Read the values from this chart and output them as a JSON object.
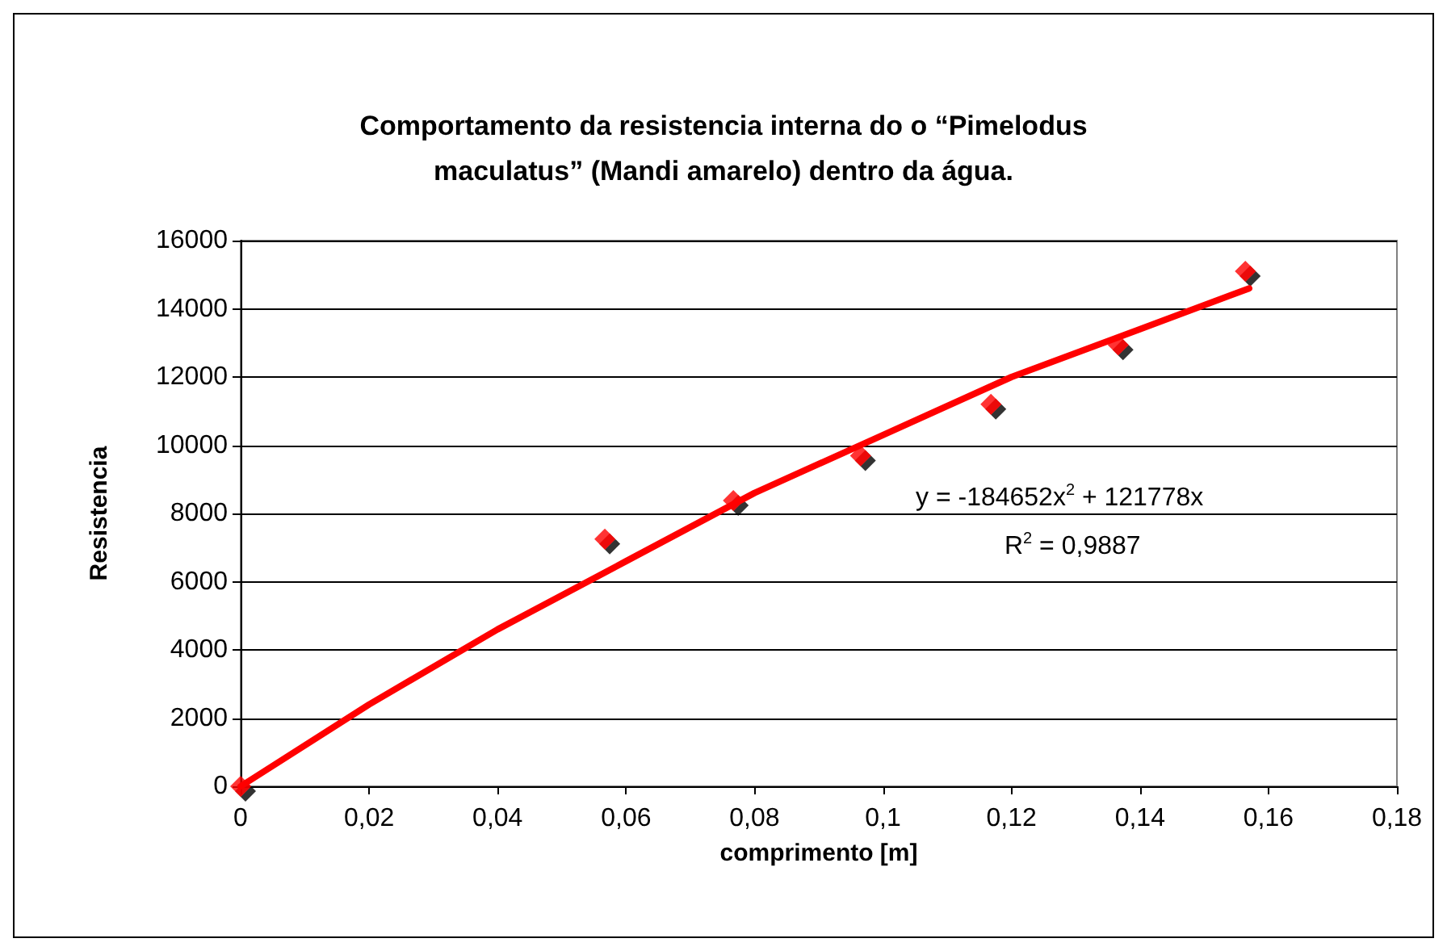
{
  "chart_data": {
    "type": "scatter",
    "title": "Comportamento da resistencia interna do o “Pimelodus\nmaculatus” (Mandi amarelo) dentro da água.",
    "xlabel": "comprimento [m]",
    "ylabel": "Resistencia",
    "x": [
      0,
      0.0567,
      0.0767,
      0.0965,
      0.1168,
      0.1366,
      0.1564
    ],
    "series": [
      {
        "color": "#ff0000",
        "values": [
          0,
          7250,
          8380,
          9690,
          11200,
          12940,
          15100
        ]
      },
      {
        "type": "line",
        "marker": "none",
        "color": "#ff0000",
        "x": [
          0,
          0.02,
          0.04,
          0.06,
          0.08,
          0.1,
          0.12,
          0.14,
          0.157
        ],
        "values": [
          0,
          2400,
          4600,
          6600,
          8600,
          10300,
          12000,
          13400,
          14600
        ]
      }
    ],
    "annotations": [
      "y = -184652x$^{2}$ + 121778x",
      "R$^{2}$ = 0,9887"
    ],
    "xlim": [
      0,
      0.18
    ],
    "xticks": [
      {
        "value": 0,
        "label": "0"
      },
      {
        "value": 0.02,
        "label": "0,02"
      },
      {
        "value": 0.04,
        "label": "0,04"
      },
      {
        "value": 0.06,
        "label": "0,06"
      },
      {
        "value": 0.08,
        "label": "0,08"
      },
      {
        "value": 0.1,
        "label": "0,1"
      },
      {
        "value": 0.12,
        "label": "0,12"
      },
      {
        "value": 0.14,
        "label": "0,14"
      },
      {
        "value": 0.16,
        "label": "0,16"
      },
      {
        "value": 0.18,
        "label": "0,18"
      }
    ],
    "ylim": [
      0,
      16000
    ],
    "yticks": [
      0,
      2000,
      4000,
      6000,
      8000,
      10000,
      12000,
      14000,
      16000
    ],
    "grid": "y",
    "marker": "diamond",
    "line_style": "solid"
  }
}
